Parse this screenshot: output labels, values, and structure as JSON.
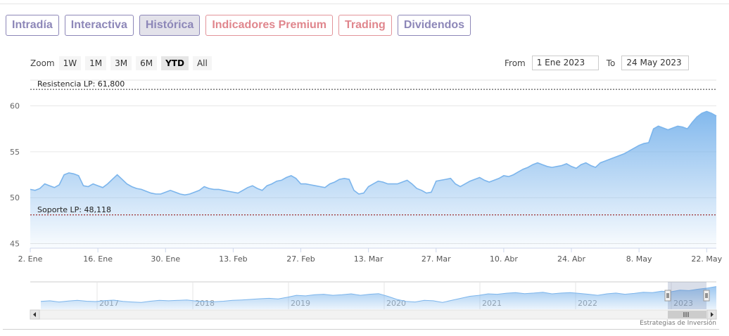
{
  "tabs": [
    {
      "label": "Intradía",
      "active": false,
      "style": "purple"
    },
    {
      "label": "Interactiva",
      "active": false,
      "style": "purple"
    },
    {
      "label": "Histórica",
      "active": true,
      "style": "purple"
    },
    {
      "label": "Indicadores Premium",
      "active": false,
      "style": "red"
    },
    {
      "label": "Trading",
      "active": false,
      "style": "red"
    },
    {
      "label": "Dividendos",
      "active": false,
      "style": "purple"
    }
  ],
  "zoom": {
    "label": "Zoom",
    "buttons": [
      "1W",
      "1M",
      "3M",
      "6M",
      "YTD",
      "All"
    ],
    "selected": "YTD"
  },
  "range": {
    "from_label": "From",
    "from_value": "1 Ene 2023",
    "to_label": "To",
    "to_value": "24 May 2023"
  },
  "footer": {
    "credit": "Estrategias de Inversión"
  },
  "colors": {
    "series": "#7cb5ec",
    "resistance": "#333333",
    "support": "#8b0000",
    "tab_purple": "#8d87b8",
    "tab_red": "#e0868d"
  },
  "chart_data": {
    "type": "area",
    "title": "",
    "xlabel": "",
    "ylabel": "",
    "ylim": [
      44.5,
      62.5
    ],
    "y_ticks": [
      45,
      50,
      55,
      60
    ],
    "x_ticks": [
      {
        "label": "2. Ene",
        "x": "2023-01-02"
      },
      {
        "label": "16. Ene",
        "x": "2023-01-16"
      },
      {
        "label": "30. Ene",
        "x": "2023-01-30"
      },
      {
        "label": "13. Feb",
        "x": "2023-02-13"
      },
      {
        "label": "27. Feb",
        "x": "2023-02-27"
      },
      {
        "label": "13. Mar",
        "x": "2023-03-13"
      },
      {
        "label": "27. Mar",
        "x": "2023-03-27"
      },
      {
        "label": "10. Abr",
        "x": "2023-04-10"
      },
      {
        "label": "24. Abr",
        "x": "2023-04-24"
      },
      {
        "label": "8. May",
        "x": "2023-05-08"
      },
      {
        "label": "22. May",
        "x": "2023-05-22"
      }
    ],
    "xlim": [
      "2023-01-02",
      "2023-05-24"
    ],
    "plot_lines": [
      {
        "label": "Resistencia LP: 61,800",
        "value": 61.8,
        "style": "dashed"
      },
      {
        "label": "Soporte LP: 48,118",
        "value": 48.118,
        "style": "dashed"
      }
    ],
    "series": [
      {
        "x": [
          "2023-01-02",
          "2023-01-03",
          "2023-01-04",
          "2023-01-05",
          "2023-01-06",
          "2023-01-07",
          "2023-01-08",
          "2023-01-09",
          "2023-01-10",
          "2023-01-11",
          "2023-01-12",
          "2023-01-13",
          "2023-01-14",
          "2023-01-15",
          "2023-01-16",
          "2023-01-17",
          "2023-01-18",
          "2023-01-19",
          "2023-01-20",
          "2023-01-21",
          "2023-01-22",
          "2023-01-23",
          "2023-01-24",
          "2023-01-25",
          "2023-01-26",
          "2023-01-27",
          "2023-01-28",
          "2023-01-29",
          "2023-01-30",
          "2023-01-31",
          "2023-02-01",
          "2023-02-02",
          "2023-02-03",
          "2023-02-04",
          "2023-02-05",
          "2023-02-06",
          "2023-02-07",
          "2023-02-08",
          "2023-02-09",
          "2023-02-10",
          "2023-02-11",
          "2023-02-12",
          "2023-02-13",
          "2023-02-14",
          "2023-02-15",
          "2023-02-16",
          "2023-02-17",
          "2023-02-18",
          "2023-02-19",
          "2023-02-20",
          "2023-02-21",
          "2023-02-22",
          "2023-02-23",
          "2023-02-24",
          "2023-02-25",
          "2023-02-26",
          "2023-02-27",
          "2023-02-28",
          "2023-03-01",
          "2023-03-02",
          "2023-03-03",
          "2023-03-04",
          "2023-03-05",
          "2023-03-06",
          "2023-03-07",
          "2023-03-08",
          "2023-03-09",
          "2023-03-10",
          "2023-03-11",
          "2023-03-12",
          "2023-03-13",
          "2023-03-14",
          "2023-03-15",
          "2023-03-16",
          "2023-03-17",
          "2023-03-18",
          "2023-03-19",
          "2023-03-20",
          "2023-03-21",
          "2023-03-22",
          "2023-03-23",
          "2023-03-24",
          "2023-03-25",
          "2023-03-26",
          "2023-03-27",
          "2023-03-28",
          "2023-03-29",
          "2023-03-30",
          "2023-03-31",
          "2023-04-01",
          "2023-04-02",
          "2023-04-03",
          "2023-04-04",
          "2023-04-05",
          "2023-04-06",
          "2023-04-07",
          "2023-04-08",
          "2023-04-09",
          "2023-04-10",
          "2023-04-11",
          "2023-04-12",
          "2023-04-13",
          "2023-04-14",
          "2023-04-15",
          "2023-04-16",
          "2023-04-17",
          "2023-04-18",
          "2023-04-19",
          "2023-04-20",
          "2023-04-21",
          "2023-04-22",
          "2023-04-23",
          "2023-04-24",
          "2023-04-25",
          "2023-04-26",
          "2023-04-27",
          "2023-04-28",
          "2023-04-29",
          "2023-04-30",
          "2023-05-01",
          "2023-05-02",
          "2023-05-03",
          "2023-05-04",
          "2023-05-05",
          "2023-05-06",
          "2023-05-07",
          "2023-05-08",
          "2023-05-09",
          "2023-05-10",
          "2023-05-11",
          "2023-05-12",
          "2023-05-13",
          "2023-05-14",
          "2023-05-15",
          "2023-05-16",
          "2023-05-17",
          "2023-05-18",
          "2023-05-19",
          "2023-05-20",
          "2023-05-21",
          "2023-05-22",
          "2023-05-23",
          "2023-05-24"
        ],
        "values": [
          50.9,
          50.8,
          51.0,
          51.5,
          51.3,
          51.1,
          51.4,
          52.5,
          52.7,
          52.6,
          52.4,
          51.3,
          51.2,
          51.5,
          51.3,
          51.1,
          51.5,
          52.0,
          52.5,
          52.0,
          51.5,
          51.2,
          51.0,
          50.9,
          50.7,
          50.5,
          50.4,
          50.4,
          50.6,
          50.8,
          50.6,
          50.4,
          50.3,
          50.4,
          50.6,
          50.8,
          51.2,
          51.0,
          50.9,
          50.9,
          50.8,
          50.7,
          50.6,
          50.5,
          50.8,
          51.1,
          51.3,
          51.0,
          50.8,
          51.3,
          51.5,
          51.8,
          51.9,
          52.2,
          52.4,
          52.1,
          51.5,
          51.5,
          51.4,
          51.3,
          51.2,
          51.1,
          51.5,
          51.7,
          52.0,
          52.1,
          52.0,
          50.8,
          50.4,
          50.5,
          51.2,
          51.5,
          51.8,
          51.7,
          51.5,
          51.5,
          51.5,
          51.7,
          51.9,
          51.5,
          51.0,
          50.8,
          50.5,
          50.6,
          51.8,
          51.9,
          52.0,
          52.1,
          51.5,
          51.2,
          51.5,
          51.8,
          52.0,
          52.2,
          51.9,
          51.7,
          51.9,
          52.1,
          52.4,
          52.3,
          52.5,
          52.8,
          53.1,
          53.3,
          53.6,
          53.8,
          53.6,
          53.4,
          53.3,
          53.4,
          53.5,
          53.7,
          53.4,
          53.2,
          53.6,
          53.8,
          53.5,
          53.3,
          53.8,
          54.0,
          54.2,
          54.4,
          54.6,
          54.8,
          55.1,
          55.4,
          55.7,
          55.9,
          56.0,
          57.5,
          57.8,
          57.6,
          57.4,
          57.6,
          57.8,
          57.7,
          57.5,
          58.2,
          58.8,
          59.2,
          59.4,
          59.2,
          58.9
        ]
      }
    ],
    "navigator": {
      "year_labels": [
        "2017",
        "2018",
        "2019",
        "2020",
        "2021",
        "2022",
        "2023"
      ],
      "selected_range": [
        "2023-01-02",
        "2023-05-24"
      ]
    }
  }
}
